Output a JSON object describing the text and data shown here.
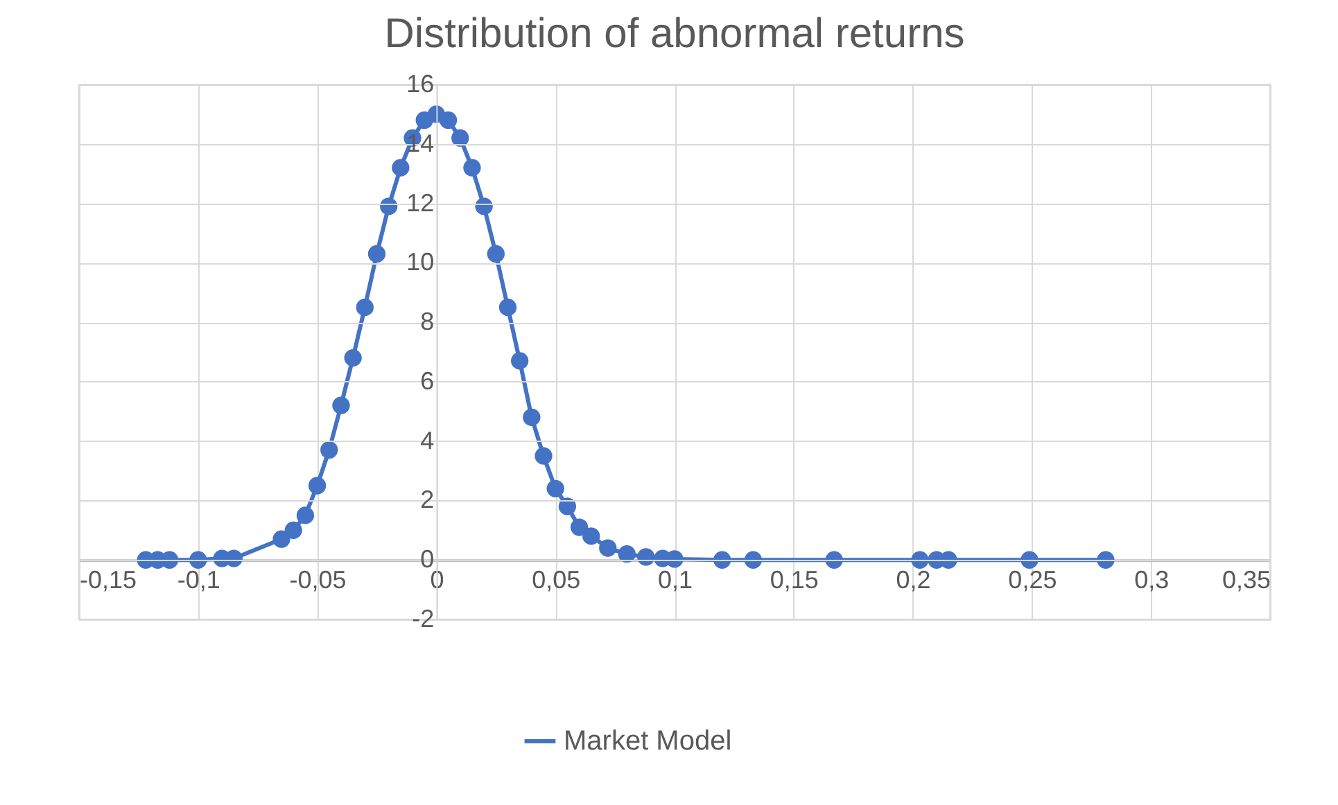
{
  "chart_data": {
    "type": "line",
    "title": "Distribution of abnormal returns",
    "x": [
      -0.122,
      -0.117,
      -0.112,
      -0.1,
      -0.09,
      -0.085,
      -0.065,
      -0.06,
      -0.055,
      -0.05,
      -0.045,
      -0.04,
      -0.035,
      -0.03,
      -0.025,
      -0.02,
      -0.015,
      -0.01,
      -0.005,
      0,
      0.005,
      0.01,
      0.015,
      0.02,
      0.025,
      0.03,
      0.035,
      0.04,
      0.045,
      0.05,
      0.055,
      0.06,
      0.065,
      0.072,
      0.08,
      0.088,
      0.095,
      0.1,
      0.12,
      0.133,
      0.167,
      0.203,
      0.21,
      0.215,
      0.249,
      0.281
    ],
    "series": [
      {
        "name": "Market Model",
        "color": "#4472c4",
        "values": [
          0,
          0,
          0,
          0,
          0.05,
          0.05,
          0.7,
          1.0,
          1.5,
          2.5,
          3.7,
          5.2,
          6.8,
          8.5,
          10.3,
          11.9,
          13.2,
          14.2,
          14.8,
          15,
          14.8,
          14.2,
          13.2,
          11.9,
          10.3,
          8.5,
          6.7,
          4.8,
          3.5,
          2.4,
          1.8,
          1.1,
          0.8,
          0.4,
          0.2,
          0.1,
          0.05,
          0.03,
          0,
          0,
          0,
          0,
          0,
          0,
          0,
          0
        ]
      }
    ],
    "xlim": [
      -0.15,
      0.35
    ],
    "xticks": [
      {
        "value": -0.15,
        "label": "-0,15"
      },
      {
        "value": -0.1,
        "label": "-0,1"
      },
      {
        "value": -0.05,
        "label": "-0,05"
      },
      {
        "value": 0,
        "label": "0"
      },
      {
        "value": 0.05,
        "label": "0,05"
      },
      {
        "value": 0.1,
        "label": "0,1"
      },
      {
        "value": 0.15,
        "label": "0,15"
      },
      {
        "value": 0.2,
        "label": "0,2"
      },
      {
        "value": 0.25,
        "label": "0,25"
      },
      {
        "value": 0.3,
        "label": "0,3"
      },
      {
        "value": 0.35,
        "label": "0,35"
      }
    ],
    "ylim": [
      -2,
      16
    ],
    "yticks": [
      -2,
      0,
      2,
      4,
      6,
      8,
      10,
      12,
      14,
      16
    ],
    "grid": true,
    "legend": "bottom",
    "marker": "circle",
    "line_style": "solid"
  }
}
